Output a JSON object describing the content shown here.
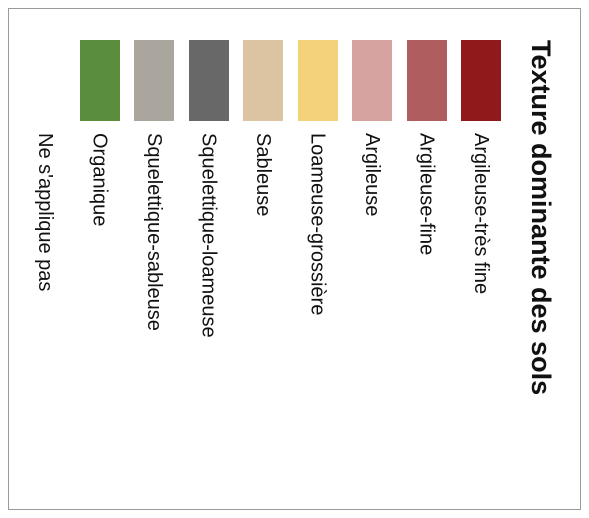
{
  "legend": {
    "title": "Texture dominante des sols",
    "items": [
      {
        "label": "Argileuse-très fine",
        "color": "#8e1a1c"
      },
      {
        "label": "Argileuse-fine",
        "color": "#b05d5f"
      },
      {
        "label": "Argileuse",
        "color": "#d7a3a1"
      },
      {
        "label": "Loameuse-grossière",
        "color": "#f3d27a"
      },
      {
        "label": "Sableuse",
        "color": "#dcc4a2"
      },
      {
        "label": "Squelettique-loameuse",
        "color": "#686868"
      },
      {
        "label": "Squelettique-sableuse",
        "color": "#aaa59d"
      },
      {
        "label": "Organique",
        "color": "#5a8d3c"
      },
      {
        "label": "Ne s'applique pas",
        "color": null
      }
    ]
  }
}
